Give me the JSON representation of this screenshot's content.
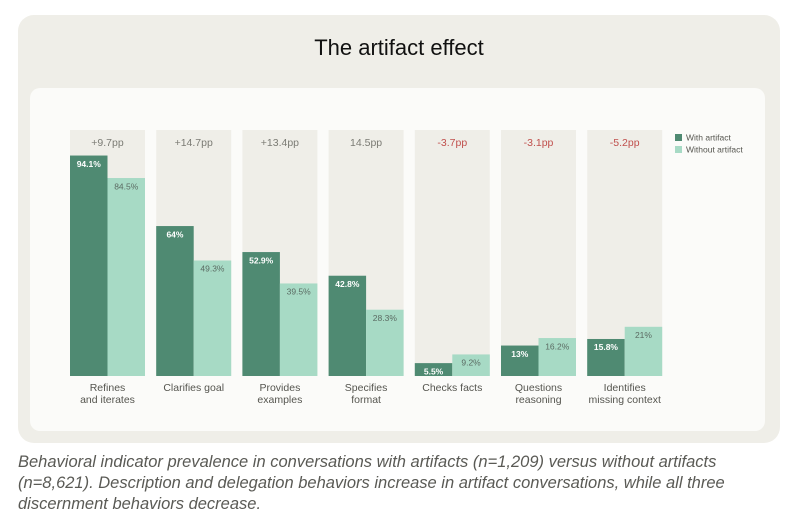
{
  "chart_data": {
    "type": "bar",
    "title": "The artifact effect",
    "categories": [
      [
        "Refines",
        "and iterates"
      ],
      [
        "Clarifies goal"
      ],
      [
        "Provides",
        "examples"
      ],
      [
        "Specifies",
        "format"
      ],
      [
        "Checks facts"
      ],
      [
        "Questions",
        "reasoning"
      ],
      [
        "Identifies",
        "missing context"
      ]
    ],
    "series": [
      {
        "name": "With artifact",
        "color": "#4f8a72",
        "label_color": "#ffffff",
        "values": [
          94.1,
          64,
          52.9,
          42.8,
          5.5,
          13,
          15.8
        ],
        "value_labels": [
          "94.1%",
          "64%",
          "52.9%",
          "42.8%",
          "5.5%",
          "13%",
          "15.8%"
        ]
      },
      {
        "name": "Without artifact",
        "color": "#a7dac5",
        "label_color": "#5b6b63",
        "values": [
          84.5,
          49.3,
          39.5,
          28.3,
          9.2,
          16.2,
          21
        ],
        "value_labels": [
          "84.5%",
          "49.3%",
          "39.5%",
          "28.3%",
          "9.2%",
          "16.2%",
          "21%"
        ]
      }
    ],
    "annotations": [
      {
        "text": "+9.7pp",
        "color": "#7b7b74"
      },
      {
        "text": "+14.7pp",
        "color": "#7b7b74"
      },
      {
        "text": "+13.4pp",
        "color": "#7b7b74"
      },
      {
        "text": "14.5pp",
        "color": "#7b7b74"
      },
      {
        "text": "-3.7pp",
        "color": "#c0504d"
      },
      {
        "text": "-3.1pp",
        "color": "#c0504d"
      },
      {
        "text": "-5.2pp",
        "color": "#c0504d"
      }
    ],
    "ylim": [
      0,
      105
    ],
    "caption": "Behavioral indicator prevalence in conversations with artifacts (n=1,209) versus without artifacts (n=8,621). Description and delegation behaviors increase in artifact conversations, while all three discernment behaviors decrease."
  }
}
